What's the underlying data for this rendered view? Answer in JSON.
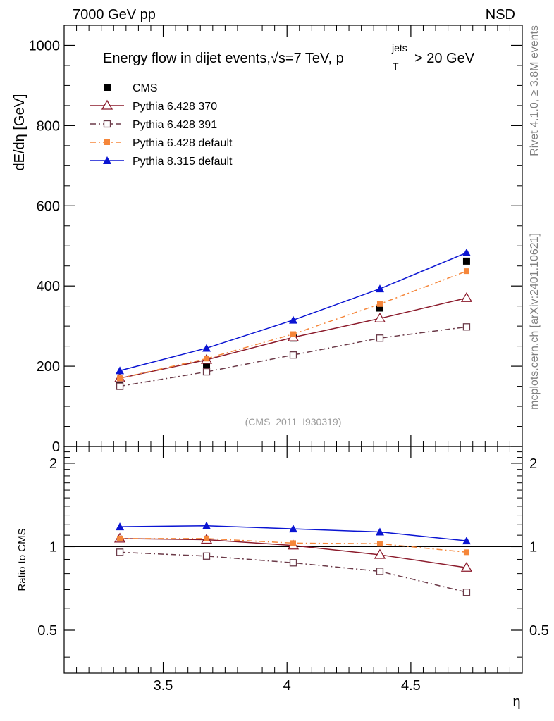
{
  "header": {
    "left": "7000 GeV pp",
    "right": "NSD"
  },
  "side_labels": {
    "rivet": "Rivet 4.1.0, ≥ 3.8M events",
    "mcplots": "mcplots.cern.ch [arXiv:2401.10621]"
  },
  "chart_data": [
    {
      "type": "line",
      "panel": "main",
      "title_parts": {
        "main": "Energy flow in dijet events,",
        "sqrt": "√s",
        "energy": "=7 TeV, p",
        "sup": "jets",
        "sub": "T",
        "cut": "> 20 GeV"
      },
      "ylabel": "dE/dη [GeV]",
      "xlabel": "η",
      "xlim": [
        3.1,
        4.95
      ],
      "ylim": [
        0,
        1050
      ],
      "y_ticks": [
        0,
        200,
        400,
        600,
        800,
        1000
      ],
      "y_tick_labels": [
        "0",
        "200",
        "400",
        "600",
        "800",
        "1000"
      ],
      "watermark": "(CMS_2011_I930319)",
      "x": [
        3.325,
        3.675,
        4.025,
        4.375,
        4.725
      ],
      "series": [
        {
          "name": "CMS",
          "values": [
            160,
            203,
            270,
            345,
            462
          ],
          "color": "#000000",
          "marker": "filled-square",
          "dash": "none"
        },
        {
          "name": "Pythia 6.428 370",
          "values": [
            170,
            216,
            272,
            319,
            370
          ],
          "color": "#8b1a2b",
          "marker": "open-triangle",
          "dash": "solid"
        },
        {
          "name": "Pythia 6.428 391",
          "values": [
            150,
            186,
            228,
            270,
            298
          ],
          "color": "#6b3a48",
          "marker": "open-square",
          "dash": "dashdot"
        },
        {
          "name": "Pythia 6.428 default",
          "values": [
            170,
            219,
            280,
            355,
            437
          ],
          "color": "#f5863a",
          "marker": "filled-square-small",
          "dash": "dashdot"
        },
        {
          "name": "Pythia 8.315 default",
          "values": [
            189,
            245,
            315,
            393,
            483
          ],
          "color": "#0a14d2",
          "marker": "filled-triangle",
          "dash": "solid"
        }
      ]
    },
    {
      "type": "line",
      "panel": "ratio",
      "ylabel": "Ratio to CMS",
      "xlabel": "η",
      "xlim": [
        3.1,
        4.95
      ],
      "ylim": [
        0.35,
        2.3
      ],
      "y_tick_labels": [
        "0.5",
        "1",
        "2"
      ],
      "y_ticks": [
        0.5,
        1,
        2
      ],
      "x_ticks": [
        3.5,
        4,
        4.5
      ],
      "x_tick_labels": [
        "3.5",
        "4",
        "4.5"
      ],
      "x": [
        3.325,
        3.675,
        4.025,
        4.375,
        4.725
      ],
      "series": [
        {
          "name": "Pythia 6.428 370",
          "values": [
            1.07,
            1.06,
            1.01,
            0.935,
            0.84
          ],
          "color": "#8b1a2b",
          "marker": "open-triangle",
          "dash": "solid"
        },
        {
          "name": "Pythia 6.428 391",
          "values": [
            0.955,
            0.925,
            0.875,
            0.815,
            0.685
          ],
          "color": "#6b3a48",
          "marker": "open-square",
          "dash": "dashdot"
        },
        {
          "name": "Pythia 6.428 default",
          "values": [
            1.07,
            1.07,
            1.03,
            1.025,
            0.955
          ],
          "color": "#f5863a",
          "marker": "filled-square-small",
          "dash": "dashdot"
        },
        {
          "name": "Pythia 8.315 default",
          "values": [
            1.18,
            1.19,
            1.16,
            1.13,
            1.05
          ],
          "color": "#0a14d2",
          "marker": "filled-triangle",
          "dash": "solid"
        }
      ]
    }
  ]
}
